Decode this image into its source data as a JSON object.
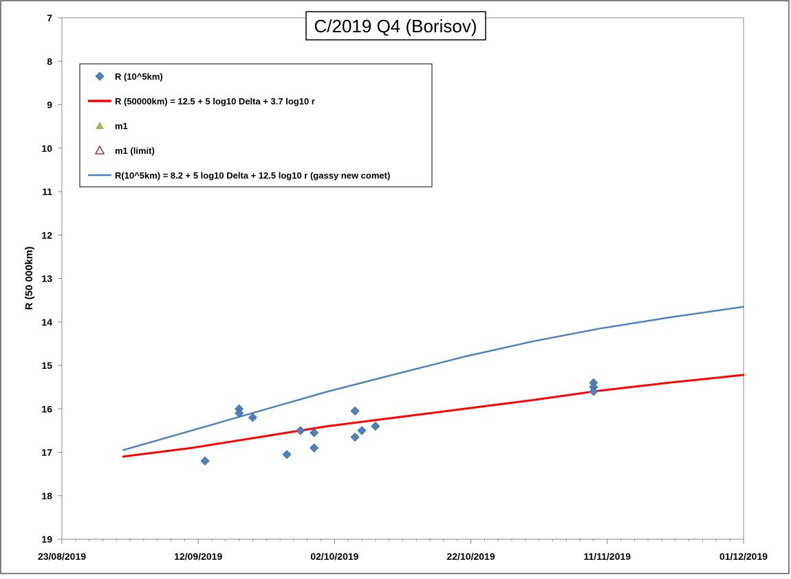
{
  "chart_data": {
    "type": "scatter",
    "title": "C/2019 Q4 (Borisov)",
    "xlabel": "",
    "ylabel": "R (50 000km)",
    "x_axis_type": "date",
    "xlim": [
      "2019-08-23",
      "2019-12-01"
    ],
    "ylim": [
      7,
      19
    ],
    "y_inverted": true,
    "y_ticks": [
      7,
      8,
      9,
      10,
      11,
      12,
      13,
      14,
      15,
      16,
      17,
      18,
      19
    ],
    "x_tick_labels": [
      {
        "date": "2019-08-23",
        "label": "23/08/2019"
      },
      {
        "date": "2019-09-12",
        "label": "12/09/2019"
      },
      {
        "date": "2019-10-02",
        "label": "02/10/2019"
      },
      {
        "date": "2019-10-22",
        "label": "22/10/2019"
      },
      {
        "date": "2019-11-11",
        "label": "11/11/2019"
      },
      {
        "date": "2019-12-01",
        "label": "01/12/2019"
      }
    ],
    "grid": false,
    "legend_position": "top-left",
    "series": [
      {
        "name": "R (10^5km)",
        "kind": "markers",
        "marker": "diamond",
        "color": "#4f81bd",
        "points": [
          {
            "x": "2019-09-13",
            "y": 17.2
          },
          {
            "x": "2019-09-18",
            "y": 16.0
          },
          {
            "x": "2019-09-18",
            "y": 16.1
          },
          {
            "x": "2019-09-20",
            "y": 16.2
          },
          {
            "x": "2019-09-25",
            "y": 17.05
          },
          {
            "x": "2019-09-27",
            "y": 16.5
          },
          {
            "x": "2019-09-29",
            "y": 16.55
          },
          {
            "x": "2019-09-29",
            "y": 16.9
          },
          {
            "x": "2019-10-05",
            "y": 16.05
          },
          {
            "x": "2019-10-05",
            "y": 16.65
          },
          {
            "x": "2019-10-06",
            "y": 16.5
          },
          {
            "x": "2019-10-08",
            "y": 16.4
          },
          {
            "x": "2019-11-09",
            "y": 15.4
          },
          {
            "x": "2019-11-09",
            "y": 15.5
          },
          {
            "x": "2019-11-09",
            "y": 15.6
          }
        ]
      },
      {
        "name": "R (50000km) = 12.5 + 5 log10 Delta + 3.7 log10 r",
        "kind": "line",
        "color": "#ff0000",
        "points": [
          {
            "x": "2019-09-01",
            "y": 17.1
          },
          {
            "x": "2019-09-11",
            "y": 16.9
          },
          {
            "x": "2019-09-21",
            "y": 16.65
          },
          {
            "x": "2019-10-01",
            "y": 16.4
          },
          {
            "x": "2019-10-11",
            "y": 16.2
          },
          {
            "x": "2019-10-21",
            "y": 16.0
          },
          {
            "x": "2019-10-31",
            "y": 15.8
          },
          {
            "x": "2019-11-10",
            "y": 15.58
          },
          {
            "x": "2019-11-20",
            "y": 15.4
          },
          {
            "x": "2019-12-01",
            "y": 15.22
          }
        ]
      },
      {
        "name": "m1",
        "kind": "markers",
        "marker": "triangle-filled",
        "color": "#9bbb59",
        "points": []
      },
      {
        "name": "m1 (limit)",
        "kind": "markers",
        "marker": "triangle-open",
        "color": "#c00000",
        "points": []
      },
      {
        "name": "R(10^5km) = 8.2 + 5 log10 Delta + 12.5 log10 r (gassy new comet)",
        "kind": "line",
        "color": "#4f81bd",
        "points": [
          {
            "x": "2019-09-01",
            "y": 16.95
          },
          {
            "x": "2019-09-11",
            "y": 16.5
          },
          {
            "x": "2019-09-21",
            "y": 16.05
          },
          {
            "x": "2019-10-01",
            "y": 15.6
          },
          {
            "x": "2019-10-11",
            "y": 15.2
          },
          {
            "x": "2019-10-21",
            "y": 14.8
          },
          {
            "x": "2019-10-31",
            "y": 14.45
          },
          {
            "x": "2019-11-10",
            "y": 14.15
          },
          {
            "x": "2019-11-20",
            "y": 13.9
          },
          {
            "x": "2019-12-01",
            "y": 13.65
          }
        ]
      }
    ]
  }
}
